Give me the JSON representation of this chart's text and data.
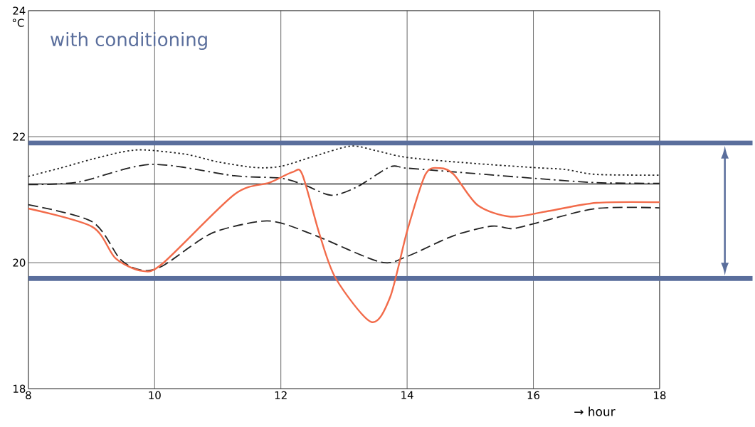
{
  "chart_data": {
    "type": "line",
    "xlabel": "→ hour",
    "ylabel": "°C",
    "annotations": [
      "with conditioning"
    ],
    "xlim": [
      8,
      18
    ],
    "ylim": [
      18,
      24
    ],
    "xticks": [
      8,
      10,
      12,
      14,
      16,
      18
    ],
    "yticks": [
      18,
      20,
      22,
      24
    ],
    "grid": true,
    "ref_lines": [
      {
        "axis": "y",
        "value": 21.9,
        "color": "#5a6e9c"
      },
      {
        "axis": "y",
        "value": 19.75,
        "color": "#5a6e9c"
      },
      {
        "axis": "y",
        "value": 21.25,
        "color": "#333333"
      }
    ],
    "series": [
      {
        "color": "#222222",
        "line_style": "dotted",
        "x": [
          8,
          8.5,
          9,
          9.5,
          9.83,
          10.5,
          11,
          11.6,
          12,
          12.5,
          13.1,
          13.5,
          14,
          15,
          16,
          16.5,
          17,
          18
        ],
        "values": [
          21.37,
          21.5,
          21.64,
          21.76,
          21.79,
          21.72,
          21.6,
          21.51,
          21.53,
          21.68,
          21.85,
          21.78,
          21.67,
          21.58,
          21.51,
          21.48,
          21.4,
          21.39
        ]
      },
      {
        "color": "#222222",
        "line_style": "dashdot",
        "x": [
          8,
          8.79,
          9.94,
          11.26,
          12,
          12.38,
          12.8,
          13.2,
          13.73,
          14,
          15,
          16,
          17,
          18
        ],
        "values": [
          21.24,
          21.28,
          21.56,
          21.38,
          21.34,
          21.23,
          21.07,
          21.2,
          21.52,
          21.5,
          21.42,
          21.34,
          21.27,
          21.26
        ]
      },
      {
        "color": "#222222",
        "line_style": "dashed",
        "x": [
          8,
          9.01,
          9.46,
          9.8,
          10.13,
          10.89,
          11.63,
          12,
          12.6,
          13.58,
          14,
          14.74,
          15.34,
          15.67,
          16.05,
          17,
          18
        ],
        "values": [
          20.92,
          20.65,
          20.05,
          19.88,
          19.95,
          20.46,
          20.65,
          20.63,
          20.41,
          20.01,
          20.1,
          20.43,
          20.58,
          20.54,
          20.63,
          20.86,
          20.87
        ]
      },
      {
        "color": "#f26b4a",
        "line_style": "solid",
        "x": [
          8,
          9.01,
          9.38,
          9.8,
          10.13,
          11.26,
          11.82,
          12.19,
          12.34,
          12.61,
          12.87,
          13.43,
          13.73,
          14,
          14.29,
          14.52,
          14.74,
          15.12,
          15.64,
          16.24,
          17,
          18
        ],
        "values": [
          20.86,
          20.57,
          20.07,
          19.87,
          19.99,
          21.08,
          21.27,
          21.44,
          21.4,
          20.46,
          19.75,
          19.06,
          19.45,
          20.5,
          21.4,
          21.5,
          21.4,
          20.91,
          20.73,
          20.82,
          20.95,
          20.96
        ]
      }
    ]
  }
}
